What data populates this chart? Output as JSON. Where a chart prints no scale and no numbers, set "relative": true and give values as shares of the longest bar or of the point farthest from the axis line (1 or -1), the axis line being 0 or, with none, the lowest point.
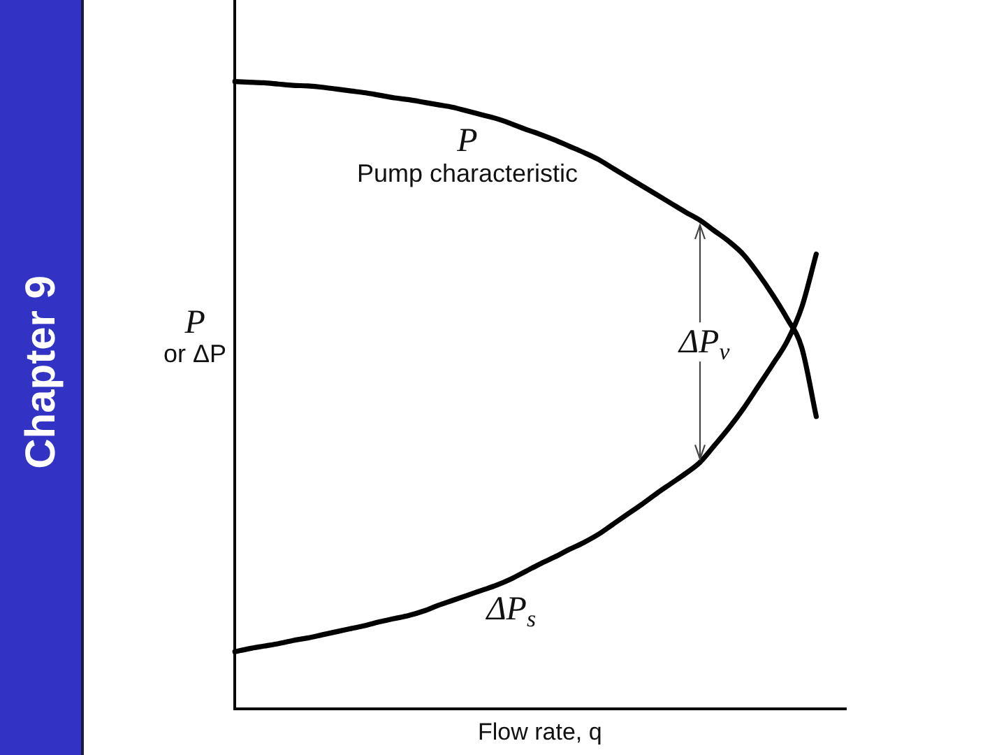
{
  "chart_data": {
    "type": "line",
    "title": "Chapter 9",
    "xlabel": "Flow rate, q",
    "ylabel": "P\nor ΔP",
    "relative": true,
    "tick_labels": false,
    "categories": [
      null,
      null,
      null,
      null,
      null,
      null,
      null,
      null,
      null,
      null,
      null,
      null,
      null,
      null,
      null,
      null,
      null,
      null,
      null,
      null,
      null,
      null,
      null,
      null,
      null,
      null,
      null,
      null,
      null,
      null,
      null,
      null,
      null,
      null,
      null,
      null,
      null,
      null,
      null,
      null,
      null,
      null,
      null
    ],
    "series": [
      {
        "name": "P\nPump characteristic",
        "color": "#000000",
        "values": [
          1,
          0.999,
          0.998,
          0.996,
          0.994,
          0.993,
          0.991,
          0.988,
          0.985,
          0.982,
          0.978,
          0.974,
          0.971,
          0.967,
          0.963,
          0.959,
          0.953,
          0.947,
          0.941,
          0.933,
          0.924,
          0.916,
          0.907,
          0.897,
          0.887,
          0.876,
          0.862,
          0.848,
          0.834,
          0.82,
          0.806,
          0.792,
          0.779,
          0.762,
          0.745,
          0.724,
          0.694,
          0.66,
          0.622,
          0.576,
          0.466,
          null,
          null
        ]
      },
      {
        "name": "ΔP$_{s}$",
        "color": "#000000",
        "values": [
          0.091,
          0.096,
          0.1,
          0.104,
          0.109,
          0.113,
          0.118,
          0.123,
          0.128,
          0.133,
          0.139,
          0.144,
          0.149,
          0.156,
          0.165,
          0.173,
          0.181,
          0.189,
          0.197,
          0.207,
          0.219,
          0.231,
          0.242,
          0.254,
          0.265,
          0.278,
          0.294,
          0.31,
          0.326,
          0.343,
          0.359,
          0.375,
          0.393,
          0.42,
          0.448,
          0.479,
          0.514,
          0.549,
          0.586,
          0.64,
          0.725,
          null,
          null
        ]
      }
    ],
    "annotations": [
      "ΔP$_{v}$"
    ]
  }
}
